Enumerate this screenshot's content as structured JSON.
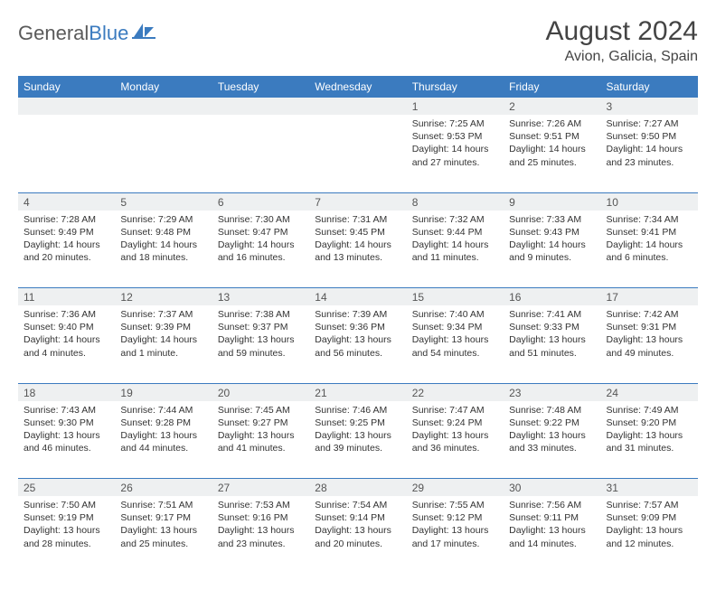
{
  "logo": {
    "part1": "General",
    "part2": "Blue"
  },
  "title": "August 2024",
  "location": "Avion, Galicia, Spain",
  "colors": {
    "header_bg": "#3b7bbf",
    "header_text": "#ffffff",
    "daynum_bg": "#eef0f1",
    "divider": "#3b7bbf",
    "text": "#333333",
    "logo_gray": "#5a5a5a",
    "logo_blue": "#3b7bbf"
  },
  "dayNames": [
    "Sunday",
    "Monday",
    "Tuesday",
    "Wednesday",
    "Thursday",
    "Friday",
    "Saturday"
  ],
  "weeks": [
    [
      null,
      null,
      null,
      null,
      {
        "n": "1",
        "sr": "7:25 AM",
        "ss": "9:53 PM",
        "dl": "14 hours and 27 minutes."
      },
      {
        "n": "2",
        "sr": "7:26 AM",
        "ss": "9:51 PM",
        "dl": "14 hours and 25 minutes."
      },
      {
        "n": "3",
        "sr": "7:27 AM",
        "ss": "9:50 PM",
        "dl": "14 hours and 23 minutes."
      }
    ],
    [
      {
        "n": "4",
        "sr": "7:28 AM",
        "ss": "9:49 PM",
        "dl": "14 hours and 20 minutes."
      },
      {
        "n": "5",
        "sr": "7:29 AM",
        "ss": "9:48 PM",
        "dl": "14 hours and 18 minutes."
      },
      {
        "n": "6",
        "sr": "7:30 AM",
        "ss": "9:47 PM",
        "dl": "14 hours and 16 minutes."
      },
      {
        "n": "7",
        "sr": "7:31 AM",
        "ss": "9:45 PM",
        "dl": "14 hours and 13 minutes."
      },
      {
        "n": "8",
        "sr": "7:32 AM",
        "ss": "9:44 PM",
        "dl": "14 hours and 11 minutes."
      },
      {
        "n": "9",
        "sr": "7:33 AM",
        "ss": "9:43 PM",
        "dl": "14 hours and 9 minutes."
      },
      {
        "n": "10",
        "sr": "7:34 AM",
        "ss": "9:41 PM",
        "dl": "14 hours and 6 minutes."
      }
    ],
    [
      {
        "n": "11",
        "sr": "7:36 AM",
        "ss": "9:40 PM",
        "dl": "14 hours and 4 minutes."
      },
      {
        "n": "12",
        "sr": "7:37 AM",
        "ss": "9:39 PM",
        "dl": "14 hours and 1 minute."
      },
      {
        "n": "13",
        "sr": "7:38 AM",
        "ss": "9:37 PM",
        "dl": "13 hours and 59 minutes."
      },
      {
        "n": "14",
        "sr": "7:39 AM",
        "ss": "9:36 PM",
        "dl": "13 hours and 56 minutes."
      },
      {
        "n": "15",
        "sr": "7:40 AM",
        "ss": "9:34 PM",
        "dl": "13 hours and 54 minutes."
      },
      {
        "n": "16",
        "sr": "7:41 AM",
        "ss": "9:33 PM",
        "dl": "13 hours and 51 minutes."
      },
      {
        "n": "17",
        "sr": "7:42 AM",
        "ss": "9:31 PM",
        "dl": "13 hours and 49 minutes."
      }
    ],
    [
      {
        "n": "18",
        "sr": "7:43 AM",
        "ss": "9:30 PM",
        "dl": "13 hours and 46 minutes."
      },
      {
        "n": "19",
        "sr": "7:44 AM",
        "ss": "9:28 PM",
        "dl": "13 hours and 44 minutes."
      },
      {
        "n": "20",
        "sr": "7:45 AM",
        "ss": "9:27 PM",
        "dl": "13 hours and 41 minutes."
      },
      {
        "n": "21",
        "sr": "7:46 AM",
        "ss": "9:25 PM",
        "dl": "13 hours and 39 minutes."
      },
      {
        "n": "22",
        "sr": "7:47 AM",
        "ss": "9:24 PM",
        "dl": "13 hours and 36 minutes."
      },
      {
        "n": "23",
        "sr": "7:48 AM",
        "ss": "9:22 PM",
        "dl": "13 hours and 33 minutes."
      },
      {
        "n": "24",
        "sr": "7:49 AM",
        "ss": "9:20 PM",
        "dl": "13 hours and 31 minutes."
      }
    ],
    [
      {
        "n": "25",
        "sr": "7:50 AM",
        "ss": "9:19 PM",
        "dl": "13 hours and 28 minutes."
      },
      {
        "n": "26",
        "sr": "7:51 AM",
        "ss": "9:17 PM",
        "dl": "13 hours and 25 minutes."
      },
      {
        "n": "27",
        "sr": "7:53 AM",
        "ss": "9:16 PM",
        "dl": "13 hours and 23 minutes."
      },
      {
        "n": "28",
        "sr": "7:54 AM",
        "ss": "9:14 PM",
        "dl": "13 hours and 20 minutes."
      },
      {
        "n": "29",
        "sr": "7:55 AM",
        "ss": "9:12 PM",
        "dl": "13 hours and 17 minutes."
      },
      {
        "n": "30",
        "sr": "7:56 AM",
        "ss": "9:11 PM",
        "dl": "13 hours and 14 minutes."
      },
      {
        "n": "31",
        "sr": "7:57 AM",
        "ss": "9:09 PM",
        "dl": "13 hours and 12 minutes."
      }
    ]
  ],
  "labels": {
    "sunrise": "Sunrise:",
    "sunset": "Sunset:",
    "daylight": "Daylight:"
  }
}
